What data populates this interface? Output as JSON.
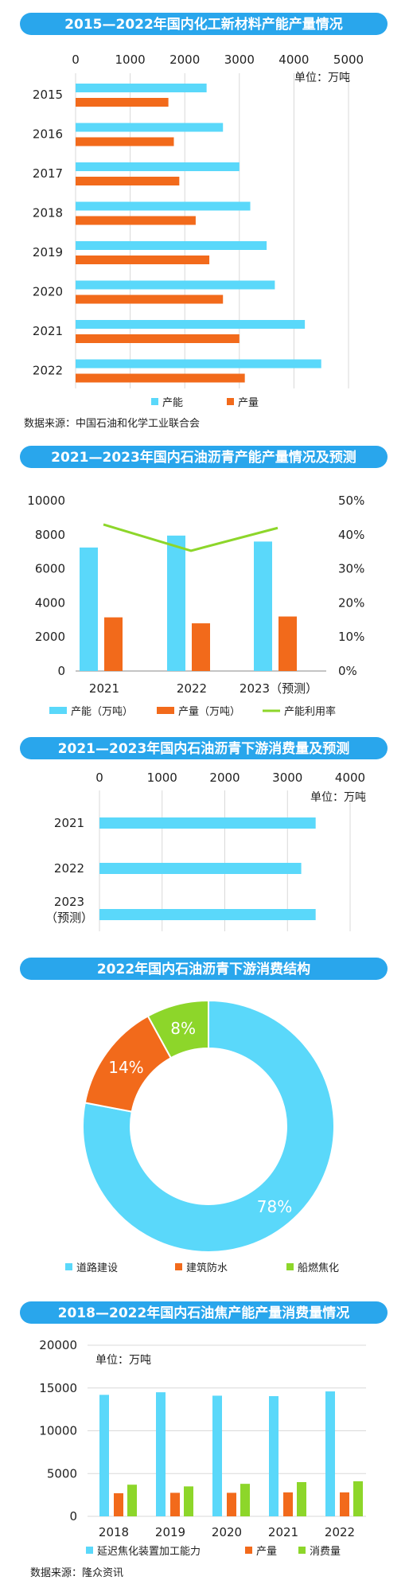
{
  "colors": {
    "banner": "#29a6ec",
    "banner_text": "#ffffff",
    "cyan": "#5ad8fa",
    "orange": "#f26a1b",
    "green": "#8dd62a",
    "grid": "#d9d9d9"
  },
  "source_1": "数据来源：中国石油和化学工业联合会",
  "source_2": "数据来源：隆众资讯",
  "chart_data": [
    {
      "type": "bar",
      "orientation": "horizontal",
      "title": "2015—2022年国内化工新材料产能产量情况",
      "unit_label": "单位：万吨",
      "categories": [
        "2015",
        "2016",
        "2017",
        "2018",
        "2019",
        "2020",
        "2021",
        "2022"
      ],
      "xlim": [
        0,
        5000
      ],
      "xticks": [
        "0",
        "1000",
        "2000",
        "3000",
        "4000",
        "5000"
      ],
      "grid": true,
      "legend": "bottom",
      "series": [
        {
          "name": "产能",
          "color": "#5ad8fa",
          "values": [
            2400,
            2700,
            3000,
            3200,
            3500,
            3650,
            4200,
            4500
          ]
        },
        {
          "name": "产量",
          "color": "#f26a1b",
          "values": [
            1700,
            1800,
            1900,
            2200,
            2450,
            2700,
            3000,
            3100
          ]
        }
      ]
    },
    {
      "type": "bar",
      "title": "2021—2023年国内石油沥青产能产量情况及预测",
      "categories": [
        "2021",
        "2022",
        "2023（预测）"
      ],
      "ylim": [
        0,
        10000
      ],
      "yticks": [
        "0",
        "2000",
        "4000",
        "6000",
        "8000",
        "10000"
      ],
      "y2lim": [
        0,
        50
      ],
      "y2ticks": [
        "0%",
        "10%",
        "20%",
        "30%",
        "40%",
        "50%"
      ],
      "grid": false,
      "legend": "bottom",
      "series": [
        {
          "name": "产能（万吨）",
          "type": "bar",
          "color": "#5ad8fa",
          "values": [
            7250,
            7950,
            7600
          ]
        },
        {
          "name": "产量（万吨）",
          "type": "bar",
          "color": "#f26a1b",
          "values": [
            3150,
            2800,
            3200
          ]
        },
        {
          "name": "产能利用率",
          "type": "line",
          "color": "#8dd62a",
          "axis": "right",
          "values": [
            43,
            35.3,
            42
          ]
        }
      ]
    },
    {
      "type": "bar",
      "orientation": "horizontal",
      "title": "2021—2023年国内石油沥青下游消费量及预测",
      "unit_label": "单位：万吨",
      "categories": [
        "2021",
        "2022",
        "2023（预测）"
      ],
      "xlim": [
        0,
        4000
      ],
      "xticks": [
        "0",
        "1000",
        "2000",
        "3000",
        "4000"
      ],
      "grid": true,
      "series": [
        {
          "name": "消费量",
          "color": "#5ad8fa",
          "values": [
            3450,
            3220,
            3450
          ]
        }
      ]
    },
    {
      "type": "pie",
      "variant": "donut",
      "title": "2022年国内石油沥青下游消费结构",
      "legend": "bottom",
      "slices": [
        {
          "label": "道路建设",
          "value": 78,
          "text": "78%",
          "color": "#5ad8fa"
        },
        {
          "label": "建筑防水",
          "value": 14,
          "text": "14%",
          "color": "#f26a1b"
        },
        {
          "label": "船燃焦化",
          "value": 8,
          "text": "8%",
          "color": "#8dd62a"
        }
      ]
    },
    {
      "type": "bar",
      "title": "2018—2022年国内石油焦产能产量消费量情况",
      "unit_label": "单位：万吨",
      "categories": [
        "2018",
        "2019",
        "2020",
        "2021",
        "2022"
      ],
      "ylim": [
        0,
        20000
      ],
      "yticks": [
        "0",
        "5000",
        "10000",
        "15000",
        "20000"
      ],
      "grid": true,
      "legend": "bottom",
      "series": [
        {
          "name": "延迟焦化装置加工能力",
          "color": "#5ad8fa",
          "values": [
            14200,
            14500,
            14100,
            14050,
            14600
          ]
        },
        {
          "name": "产量",
          "color": "#f26a1b",
          "values": [
            2700,
            2750,
            2750,
            2800,
            2800
          ]
        },
        {
          "name": "消费量",
          "color": "#8dd62a",
          "values": [
            3700,
            3500,
            3800,
            4000,
            4100
          ]
        }
      ]
    }
  ]
}
